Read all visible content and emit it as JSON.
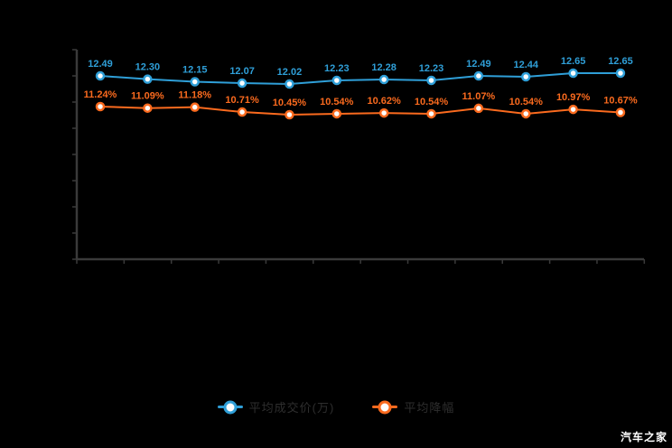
{
  "background": "#000000",
  "axis_color": "#3a3a3a",
  "watermark": {
    "text": "汽车之家"
  },
  "legend": {
    "text_color": "#2e2e2e",
    "items": [
      {
        "label": "平均成交价(万)",
        "color": "#2f9fd8"
      },
      {
        "label": "平均降幅",
        "color": "#fa6a1e"
      }
    ]
  },
  "chart_data": {
    "type": "line",
    "title": "",
    "xlabel": "",
    "ylabel": "",
    "grid": false,
    "legend_position": "bottom",
    "x_axis_labels_visible": false,
    "y_axis_labels_visible": false,
    "x": [
      1,
      2,
      3,
      4,
      5,
      6,
      7,
      8,
      9,
      10,
      11,
      12
    ],
    "series": [
      {
        "name": "平均成交价(万)",
        "color": "#2f9fd8",
        "marker": "hollow-circle",
        "label_suffix": "",
        "decimals": 2,
        "values": [
          12.49,
          12.3,
          12.15,
          12.07,
          12.02,
          12.23,
          12.28,
          12.23,
          12.49,
          12.44,
          12.65,
          12.65
        ]
      },
      {
        "name": "平均降幅",
        "color": "#fa6a1e",
        "marker": "hollow-circle",
        "label_suffix": "%",
        "decimals": 2,
        "values": [
          11.24,
          11.09,
          11.18,
          10.71,
          10.45,
          10.54,
          10.62,
          10.54,
          11.07,
          10.54,
          10.97,
          10.67
        ]
      }
    ]
  }
}
